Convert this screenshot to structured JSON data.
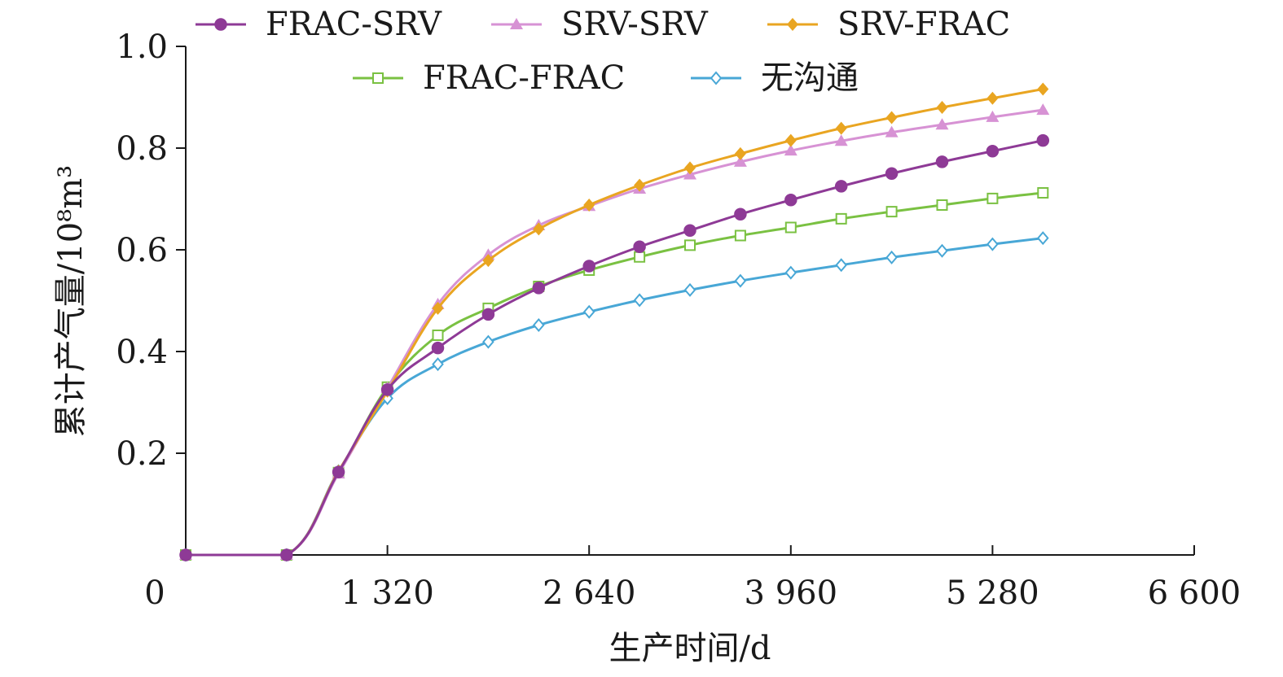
{
  "chart_data": {
    "type": "line",
    "title": "",
    "xlabel": "生产时间/d",
    "ylabel": "累计产气量/10⁸m³",
    "xlim": [
      0,
      6600
    ],
    "ylim": [
      0,
      1.0
    ],
    "x_ticks": [
      0,
      1320,
      2640,
      3960,
      5280,
      6600
    ],
    "x_tick_labels": [
      "0",
      "1 320",
      "2 640",
      "3 960",
      "5 280",
      "6 600"
    ],
    "y_ticks": [
      0.2,
      0.4,
      0.6,
      0.8,
      1.0
    ],
    "y_tick_labels": [
      "0.2",
      "0.4",
      "0.6",
      "0.8",
      "1.0"
    ],
    "grid": false,
    "legend_position": "top",
    "x": [
      0,
      660,
      1000,
      1320,
      1650,
      1980,
      2310,
      2640,
      2970,
      3300,
      3630,
      3960,
      4290,
      4620,
      4950,
      5280,
      5610
    ],
    "series": [
      {
        "name": "FRAC-SRV",
        "color": "#8e3a96",
        "marker": "circle",
        "values": [
          0,
          0,
          0.163,
          0.325,
          0.407,
          0.473,
          0.525,
          0.568,
          0.606,
          0.638,
          0.67,
          0.698,
          0.725,
          0.75,
          0.773,
          0.794,
          0.815
        ]
      },
      {
        "name": "SRV-SRV",
        "color": "#d792d4",
        "marker": "triangle",
        "values": [
          0,
          0,
          0.16,
          0.328,
          0.493,
          0.59,
          0.648,
          0.686,
          0.72,
          0.748,
          0.773,
          0.795,
          0.814,
          0.831,
          0.846,
          0.861,
          0.875
        ]
      },
      {
        "name": "SRV-FRAC",
        "color": "#e9a521",
        "marker": "diamond",
        "values": [
          0,
          0,
          0.165,
          0.322,
          0.485,
          0.579,
          0.641,
          0.688,
          0.727,
          0.761,
          0.789,
          0.815,
          0.839,
          0.86,
          0.88,
          0.898,
          0.916
        ]
      },
      {
        "name": "FRAC-FRAC",
        "color": "#7ac142",
        "marker": "square-open",
        "values": [
          0,
          0,
          0.162,
          0.33,
          0.432,
          0.485,
          0.528,
          0.56,
          0.586,
          0.609,
          0.628,
          0.644,
          0.661,
          0.675,
          0.688,
          0.701,
          0.712
        ]
      },
      {
        "name": "无沟通",
        "color": "#48a7d6",
        "marker": "diamond-open",
        "values": [
          0,
          0,
          0.165,
          0.308,
          0.375,
          0.419,
          0.452,
          0.478,
          0.501,
          0.521,
          0.539,
          0.555,
          0.57,
          0.585,
          0.598,
          0.611,
          0.623
        ]
      }
    ]
  }
}
